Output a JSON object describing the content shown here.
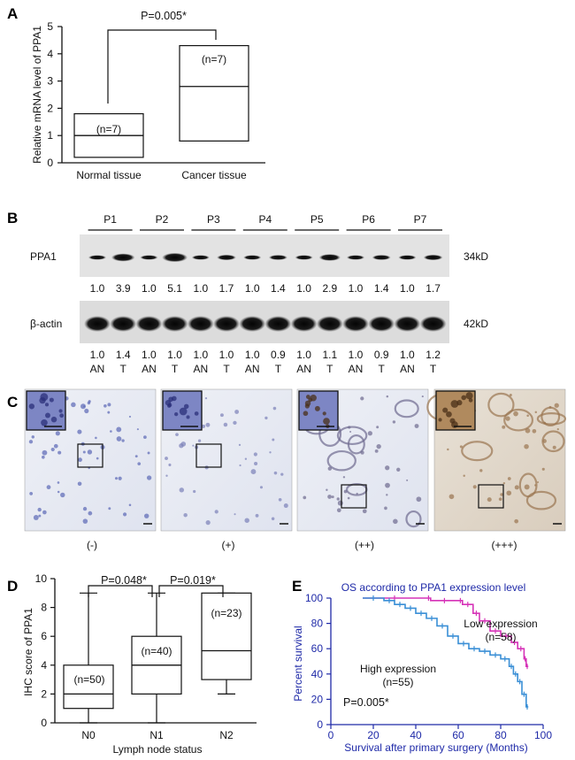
{
  "panels": {
    "A": {
      "letter": "A",
      "pvalue": "P=0.005*",
      "ylabel": "Relative mRNA level of PPA1",
      "yticks": [
        "0",
        "1",
        "2",
        "3",
        "4",
        "5"
      ],
      "groups": [
        {
          "name": "Normal tissue",
          "n": "(n=7)"
        },
        {
          "name": "Cancer tissue",
          "n": "(n=7)"
        }
      ]
    },
    "B": {
      "letter": "B",
      "patients": [
        "P1",
        "P2",
        "P3",
        "P4",
        "P5",
        "P6",
        "P7"
      ],
      "ppa1_label": "PPA1",
      "ppa1_kd": "34kD",
      "ppa1_values": [
        "1.0",
        "3.9",
        "1.0",
        "5.1",
        "1.0",
        "1.7",
        "1.0",
        "1.4",
        "1.0",
        "2.9",
        "1.0",
        "1.4",
        "1.0",
        "1.7"
      ],
      "actin_label": "β-actin",
      "actin_kd": "42kD",
      "actin_values": [
        "1.0",
        "1.4",
        "1.0",
        "1.0",
        "1.0",
        "1.0",
        "1.0",
        "0.9",
        "1.0",
        "1.1",
        "1.0",
        "0.9",
        "1.0",
        "1.2"
      ],
      "lane_labels": [
        "AN",
        "T",
        "AN",
        "T",
        "AN",
        "T",
        "AN",
        "T",
        "AN",
        "T",
        "AN",
        "T",
        "AN",
        "T"
      ]
    },
    "C": {
      "letter": "C",
      "labels": [
        "(-)",
        "(+)",
        "(++)",
        "(+++)"
      ]
    },
    "D": {
      "letter": "D",
      "p1": "P=0.048*",
      "p2": "P=0.019*",
      "ylabel": "IHC score of PPA1",
      "xlabel": "Lymph node status",
      "yticks": [
        "0",
        "2",
        "4",
        "6",
        "8",
        "10"
      ],
      "groups": [
        {
          "name": "N0",
          "n": "(n=50)"
        },
        {
          "name": "N1",
          "n": "(n=40)"
        },
        {
          "name": "N2",
          "n": "(n=23)"
        }
      ]
    },
    "E": {
      "letter": "E",
      "title": "OS according to PPA1 expression level",
      "ylabel": "Percent survival",
      "xlabel": "Survival after primary surgery (Months)",
      "yticks": [
        "0",
        "20",
        "40",
        "60",
        "80",
        "100"
      ],
      "xticks": [
        "0",
        "20",
        "40",
        "60",
        "80",
        "100"
      ],
      "low_label": "Low expression",
      "low_n": "(n=58)",
      "high_label": "High expression",
      "high_n": "(n=55)",
      "pvalue": "P=0.005*"
    }
  },
  "chart_data": [
    {
      "type": "box",
      "panel": "A",
      "ylabel": "Relative mRNA level of PPA1",
      "ylim": [
        0,
        5
      ],
      "categories": [
        "Normal tissue",
        "Cancer tissue"
      ],
      "boxes": [
        {
          "min": 0.2,
          "median": 1.0,
          "max": 1.8
        },
        {
          "min": 0.8,
          "median": 2.8,
          "max": 4.3
        }
      ]
    },
    {
      "type": "box",
      "panel": "D",
      "ylabel": "IHC score of PPA1",
      "xlabel": "Lymph node status",
      "ylim": [
        0,
        10
      ],
      "categories": [
        "N0",
        "N1",
        "N2"
      ],
      "boxes": [
        {
          "min": 0,
          "q1": 1,
          "median": 2,
          "q3": 4,
          "max": 9
        },
        {
          "min": 0,
          "q1": 2,
          "median": 4,
          "q3": 6,
          "max": 9
        },
        {
          "min": 2,
          "q1": 3,
          "median": 5,
          "q3": 9,
          "max": 9
        }
      ]
    },
    {
      "type": "line",
      "panel": "E",
      "title": "OS according to PPA1 expression level",
      "xlabel": "Survival after primary surgery (Months)",
      "ylabel": "Percent survival",
      "xlim": [
        0,
        100
      ],
      "ylim": [
        0,
        100
      ],
      "series": [
        {
          "name": "Low expression",
          "color": "#d633b8",
          "x": [
            15,
            45,
            47,
            60,
            62,
            67,
            70,
            75,
            80,
            85,
            88,
            91,
            92,
            93
          ],
          "y": [
            100,
            100,
            98,
            98,
            95,
            88,
            82,
            74,
            70,
            65,
            60,
            52,
            46,
            46
          ]
        },
        {
          "name": "High expression",
          "color": "#3a8fd6",
          "x": [
            15,
            25,
            30,
            35,
            40,
            45,
            50,
            55,
            60,
            65,
            70,
            75,
            80,
            84,
            86,
            88,
            90,
            92,
            93
          ],
          "y": [
            100,
            98,
            95,
            92,
            88,
            84,
            78,
            70,
            64,
            60,
            58,
            55,
            52,
            46,
            40,
            34,
            24,
            14,
            14
          ]
        }
      ]
    }
  ]
}
